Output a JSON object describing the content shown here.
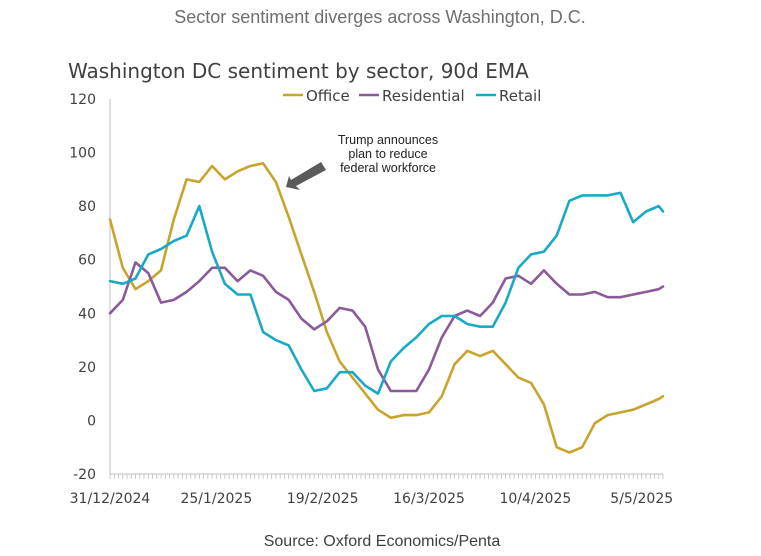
{
  "header": "Sector sentiment diverges across Washington, D.C.",
  "source": "Source: Oxford Economics/Penta",
  "chart_data": {
    "type": "line",
    "title": "Washington DC sentiment by sector, 90d EMA",
    "xlabel": "",
    "ylabel": "",
    "ylim": [
      -20,
      120
    ],
    "yticks": [
      -20,
      0,
      20,
      40,
      60,
      80,
      100,
      120
    ],
    "xlim": [
      0,
      130
    ],
    "xtick_positions": [
      0,
      25,
      50,
      75,
      100,
      125
    ],
    "xtick_labels": [
      "31/12/2024",
      "25/1/2025",
      "19/2/2025",
      "16/3/2025",
      "10/4/2025",
      "5/5/2025"
    ],
    "grid": false,
    "legend_position": "top",
    "x": [
      0,
      3,
      6,
      9,
      12,
      15,
      18,
      21,
      24,
      27,
      30,
      33,
      36,
      39,
      42,
      45,
      48,
      51,
      54,
      57,
      60,
      63,
      66,
      69,
      72,
      75,
      78,
      81,
      84,
      87,
      90,
      93,
      96,
      99,
      102,
      105,
      108,
      111,
      114,
      117,
      120,
      123,
      126,
      129,
      130
    ],
    "series": [
      {
        "name": "Office",
        "color": "#c8a42d",
        "values": [
          75,
          57,
          49,
          52,
          56,
          75,
          90,
          89,
          95,
          90,
          93,
          95,
          96,
          89,
          76,
          62,
          48,
          33,
          22,
          16,
          10,
          4,
          1,
          2,
          2,
          3,
          9,
          21,
          26,
          24,
          26,
          21,
          16,
          14,
          6,
          -10,
          -12,
          -10,
          -1,
          2,
          3,
          4,
          6,
          8,
          9
        ]
      },
      {
        "name": "Residential",
        "color": "#8a5a9a",
        "values": [
          40,
          45,
          59,
          55,
          44,
          45,
          48,
          52,
          57,
          57,
          52,
          56,
          54,
          48,
          45,
          38,
          34,
          37,
          42,
          41,
          35,
          19,
          11,
          11,
          11,
          19,
          31,
          39,
          41,
          39,
          44,
          53,
          54,
          51,
          56,
          51,
          47,
          47,
          48,
          46,
          46,
          47,
          48,
          49,
          50
        ]
      },
      {
        "name": "Retail",
        "color": "#1aa8c8",
        "values": [
          52,
          51,
          53,
          62,
          64,
          67,
          69,
          80,
          63,
          51,
          47,
          47,
          33,
          30,
          28,
          19,
          11,
          12,
          18,
          18,
          13,
          10,
          22,
          27,
          31,
          36,
          39,
          39,
          36,
          35,
          35,
          44,
          57,
          62,
          63,
          69,
          82,
          84,
          84,
          84,
          85,
          74,
          78,
          80,
          78
        ]
      }
    ],
    "annotation": {
      "text": [
        "Trump announces",
        "plan to reduce",
        "federal workforce"
      ],
      "target_x": 41,
      "target_y": 89
    }
  }
}
